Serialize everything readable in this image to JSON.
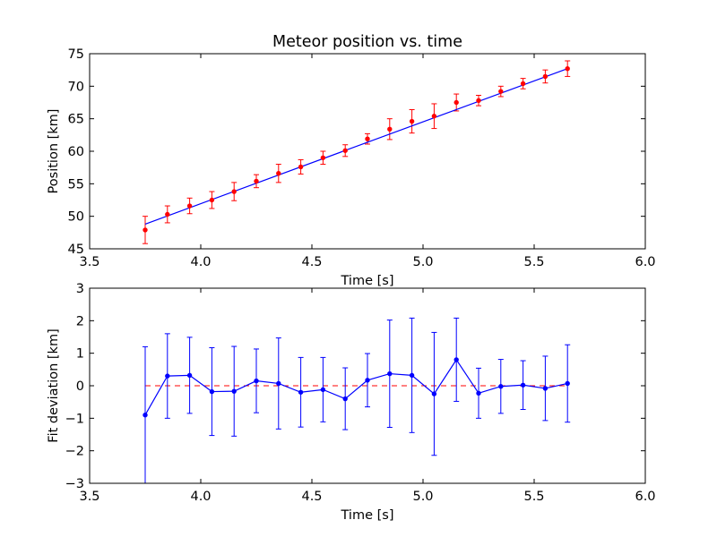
{
  "chart_data": [
    {
      "type": "scatter",
      "title": "Meteor position vs. time",
      "xlabel": "Time [s]",
      "ylabel": "Position [km]",
      "xlim": [
        3.5,
        6.0
      ],
      "ylim": [
        45,
        75
      ],
      "xticks": [
        "3.5",
        "4.0",
        "4.5",
        "5.0",
        "5.5",
        "6.0"
      ],
      "yticks": [
        "45",
        "50",
        "55",
        "60",
        "65",
        "70",
        "75"
      ],
      "grid": false,
      "colors": {
        "points": "#ff0000",
        "errorbars": "#ff0000",
        "fit": "#0000ff"
      },
      "points": {
        "x": [
          3.75,
          3.85,
          3.95,
          4.05,
          4.15,
          4.25,
          4.35,
          4.45,
          4.55,
          4.65,
          4.75,
          4.85,
          4.95,
          5.05,
          5.15,
          5.25,
          5.35,
          5.45,
          5.55,
          5.65
        ],
        "y": [
          47.9,
          50.3,
          51.6,
          52.5,
          53.8,
          55.4,
          56.6,
          57.6,
          59.0,
          60.1,
          61.9,
          63.4,
          64.6,
          65.4,
          67.5,
          67.8,
          69.2,
          70.4,
          71.5,
          72.7
        ],
        "err": [
          2.1,
          1.3,
          1.2,
          1.3,
          1.4,
          1.0,
          1.4,
          1.1,
          1.0,
          0.9,
          0.8,
          1.6,
          1.8,
          1.9,
          1.3,
          0.8,
          0.8,
          0.8,
          1.0,
          1.2
        ]
      },
      "fit_line": {
        "x": [
          3.75,
          5.65
        ],
        "y": [
          48.8,
          72.7
        ]
      }
    },
    {
      "type": "line",
      "title": "",
      "xlabel": "Time [s]",
      "ylabel": "Fit deviation [km]",
      "xlim": [
        3.5,
        6.0
      ],
      "ylim": [
        -3,
        3
      ],
      "xticks": [
        "3.5",
        "4.0",
        "4.5",
        "5.0",
        "5.5",
        "6.0"
      ],
      "yticks": [
        "−3",
        "−2",
        "−1",
        "0",
        "1",
        "2",
        "3"
      ],
      "grid": false,
      "colors": {
        "series": "#0000ff",
        "zero_line": "#ff0000"
      },
      "series": {
        "x": [
          3.75,
          3.85,
          3.95,
          4.05,
          4.15,
          4.25,
          4.35,
          4.45,
          4.55,
          4.65,
          4.75,
          4.85,
          4.95,
          5.05,
          5.15,
          5.25,
          5.35,
          5.45,
          5.55,
          5.65
        ],
        "y": [
          -0.9,
          0.3,
          0.32,
          -0.18,
          -0.17,
          0.15,
          0.07,
          -0.2,
          -0.12,
          -0.4,
          0.17,
          0.37,
          0.32,
          -0.25,
          0.8,
          -0.23,
          -0.02,
          0.02,
          -0.08,
          0.07
        ],
        "err": [
          2.1,
          1.3,
          1.17,
          1.35,
          1.38,
          0.98,
          1.4,
          1.07,
          0.99,
          0.95,
          0.82,
          1.65,
          1.76,
          1.89,
          1.28,
          0.77,
          0.83,
          0.75,
          0.99,
          1.19
        ]
      },
      "zero_line": {
        "x": [
          3.75,
          5.65
        ],
        "y": [
          0,
          0
        ]
      }
    }
  ]
}
